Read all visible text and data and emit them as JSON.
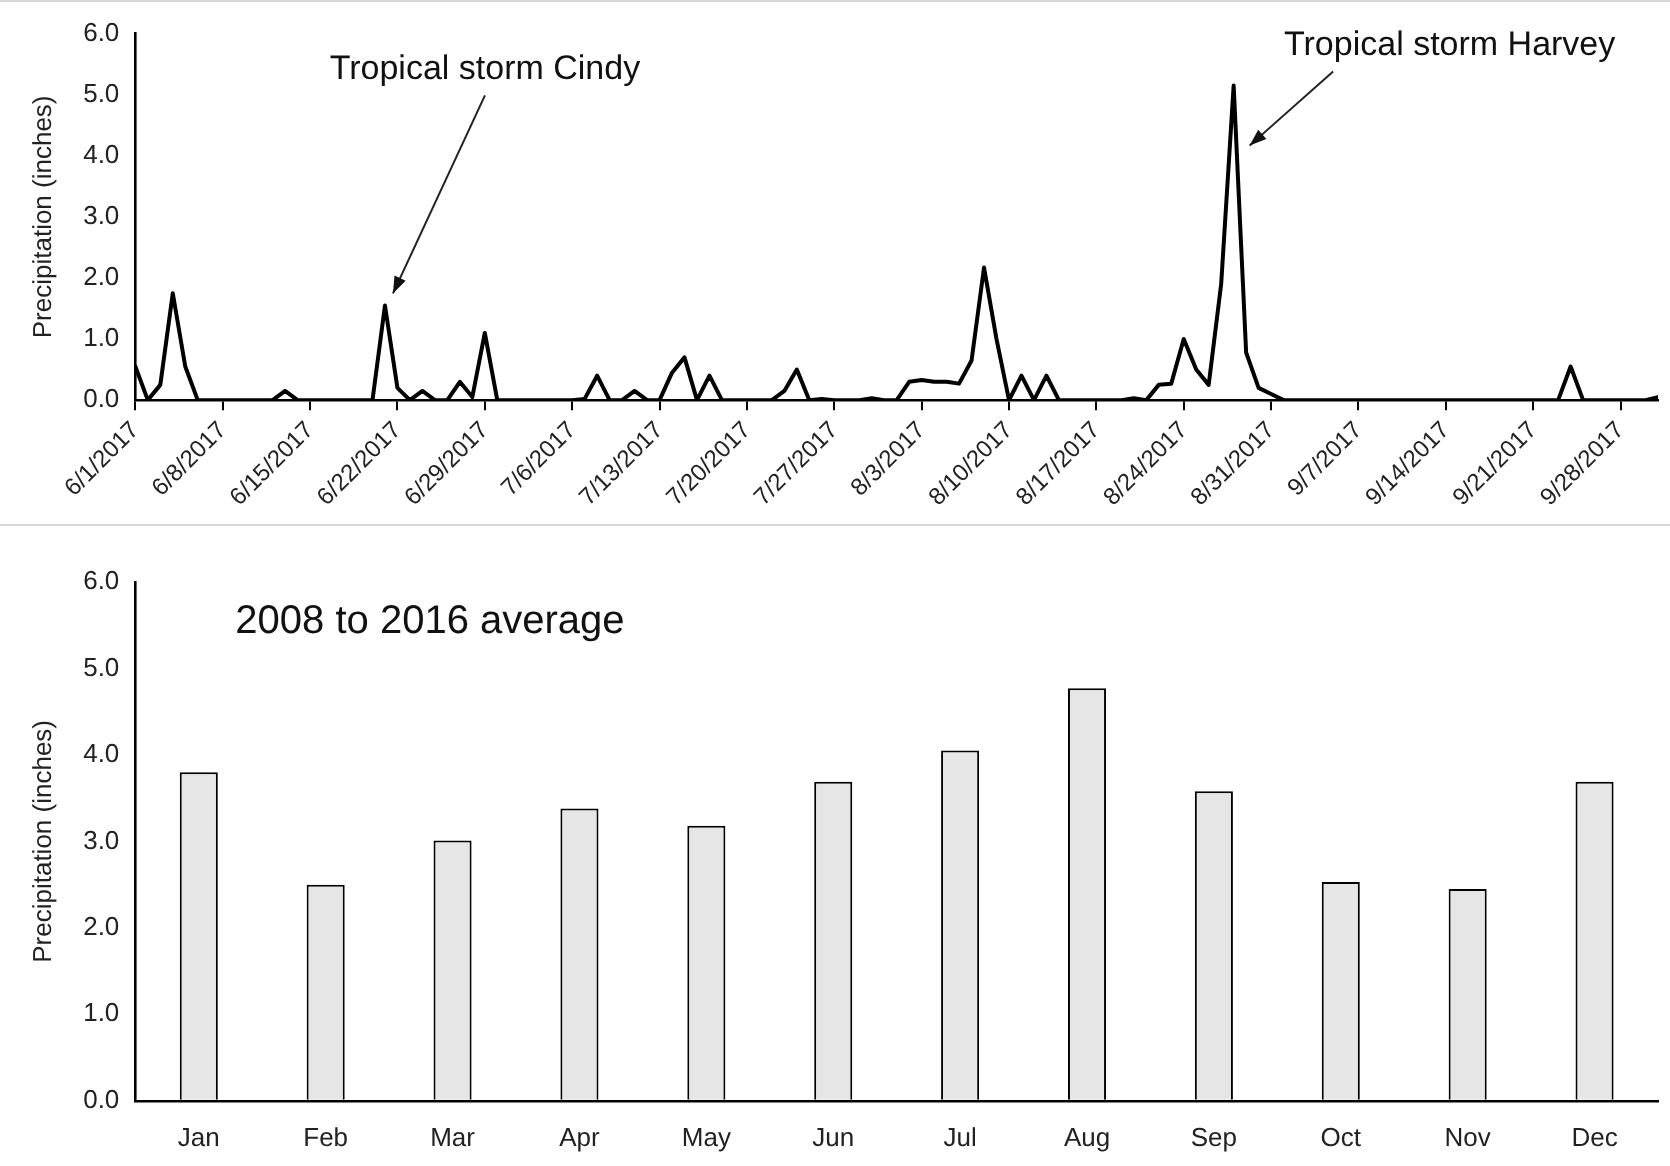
{
  "chart_data": [
    {
      "type": "line",
      "ylabel": "Precipitation (inches)",
      "xlim": [
        "2017-06-01",
        "2017-10-01"
      ],
      "xticks": [
        {
          "value": "2017-06-01",
          "label": "6/1/2017"
        },
        {
          "value": "2017-06-08",
          "label": "6/8/2017"
        },
        {
          "value": "2017-06-15",
          "label": "6/15/2017"
        },
        {
          "value": "2017-06-22",
          "label": "6/22/2017"
        },
        {
          "value": "2017-06-29",
          "label": "6/29/2017"
        },
        {
          "value": "2017-07-06",
          "label": "7/6/2017"
        },
        {
          "value": "2017-07-13",
          "label": "7/13/2017"
        },
        {
          "value": "2017-07-20",
          "label": "7/20/2017"
        },
        {
          "value": "2017-07-27",
          "label": "7/27/2017"
        },
        {
          "value": "2017-08-03",
          "label": "8/3/2017"
        },
        {
          "value": "2017-08-10",
          "label": "8/10/2017"
        },
        {
          "value": "2017-08-17",
          "label": "8/17/2017"
        },
        {
          "value": "2017-08-24",
          "label": "8/24/2017"
        },
        {
          "value": "2017-08-31",
          "label": "8/31/2017"
        },
        {
          "value": "2017-09-07",
          "label": "9/7/2017"
        },
        {
          "value": "2017-09-14",
          "label": "9/14/2017"
        },
        {
          "value": "2017-09-21",
          "label": "9/21/2017"
        },
        {
          "value": "2017-09-28",
          "label": "9/28/2017"
        }
      ],
      "ylim": [
        0,
        6
      ],
      "yticks": [
        {
          "value": 0,
          "label": "0.0"
        },
        {
          "value": 1,
          "label": "1.0"
        },
        {
          "value": 2,
          "label": "2.0"
        },
        {
          "value": 3,
          "label": "3.0"
        },
        {
          "value": 4,
          "label": "4.0"
        },
        {
          "value": 5,
          "label": "5.0"
        },
        {
          "value": 6,
          "label": "6.0"
        }
      ],
      "series": [
        {
          "color": "#000000",
          "x": [
            "2017-06-01",
            "2017-06-02",
            "2017-06-03",
            "2017-06-04",
            "2017-06-05",
            "2017-06-06",
            "2017-06-12",
            "2017-06-13",
            "2017-06-14",
            "2017-06-20",
            "2017-06-21",
            "2017-06-22",
            "2017-06-23",
            "2017-06-24",
            "2017-06-25",
            "2017-06-26",
            "2017-06-27",
            "2017-06-28",
            "2017-06-29",
            "2017-06-30",
            "2017-07-06",
            "2017-07-07",
            "2017-07-08",
            "2017-07-09",
            "2017-07-10",
            "2017-07-11",
            "2017-07-12",
            "2017-07-13",
            "2017-07-14",
            "2017-07-15",
            "2017-07-16",
            "2017-07-17",
            "2017-07-18",
            "2017-07-22",
            "2017-07-23",
            "2017-07-24",
            "2017-07-25",
            "2017-07-26",
            "2017-07-27",
            "2017-07-29",
            "2017-07-30",
            "2017-07-31",
            "2017-08-01",
            "2017-08-02",
            "2017-08-03",
            "2017-08-04",
            "2017-08-05",
            "2017-08-06",
            "2017-08-07",
            "2017-08-08",
            "2017-08-09",
            "2017-08-10",
            "2017-08-11",
            "2017-08-12",
            "2017-08-13",
            "2017-08-14",
            "2017-08-19",
            "2017-08-20",
            "2017-08-21",
            "2017-08-22",
            "2017-08-23",
            "2017-08-24",
            "2017-08-25",
            "2017-08-26",
            "2017-08-27",
            "2017-08-28",
            "2017-08-29",
            "2017-08-30",
            "2017-08-31",
            "2017-09-01",
            "2017-09-23",
            "2017-09-24",
            "2017-09-25",
            "2017-09-30",
            "2017-10-01"
          ],
          "values": [
            0.55,
            0,
            0.25,
            1.75,
            0.55,
            0,
            0,
            0.15,
            0,
            0,
            1.55,
            0.2,
            0,
            0.15,
            0,
            0,
            0.3,
            0.05,
            1.1,
            0,
            0,
            0.02,
            0.4,
            0,
            0,
            0.15,
            0,
            0,
            0.45,
            0.7,
            0,
            0.4,
            0,
            0,
            0.15,
            0.5,
            0,
            0.02,
            0,
            0,
            0.03,
            0,
            0,
            0.3,
            0.33,
            0.3,
            0.3,
            0.27,
            0.65,
            2.17,
            1.0,
            0,
            0.4,
            0,
            0.4,
            0,
            0,
            0.03,
            0,
            0.25,
            0.27,
            1.0,
            0.5,
            0.25,
            1.9,
            5.15,
            0.78,
            0.2,
            0.1,
            0,
            0,
            0.55,
            0,
            0,
            0.05
          ]
        }
      ],
      "annotations": [
        {
          "text": "Tropical storm Cindy",
          "x": "2017-06-21",
          "y": 1.55
        },
        {
          "text": "Tropical storm Harvey",
          "x": "2017-08-28",
          "y": 5.15
        }
      ]
    },
    {
      "type": "bar",
      "ylabel": "Precipitation (inches)",
      "categories": [
        "Jan",
        "Feb",
        "Mar",
        "Apr",
        "May",
        "Jun",
        "Jul",
        "Aug",
        "Sep",
        "Oct",
        "Nov",
        "Dec"
      ],
      "values": [
        3.8,
        2.5,
        3.01,
        3.38,
        3.18,
        3.69,
        4.05,
        4.77,
        3.58,
        2.53,
        2.45,
        3.69
      ],
      "color": "#e6e6e6",
      "ylim": [
        0,
        6
      ],
      "yticks": [
        {
          "value": 0,
          "label": "0.0"
        },
        {
          "value": 1,
          "label": "1.0"
        },
        {
          "value": 2,
          "label": "2.0"
        },
        {
          "value": 3,
          "label": "3.0"
        },
        {
          "value": 4,
          "label": "4.0"
        },
        {
          "value": 5,
          "label": "5.0"
        },
        {
          "value": 6,
          "label": "6.0"
        }
      ],
      "annotations": [
        "2008 to 2016 average"
      ]
    }
  ]
}
